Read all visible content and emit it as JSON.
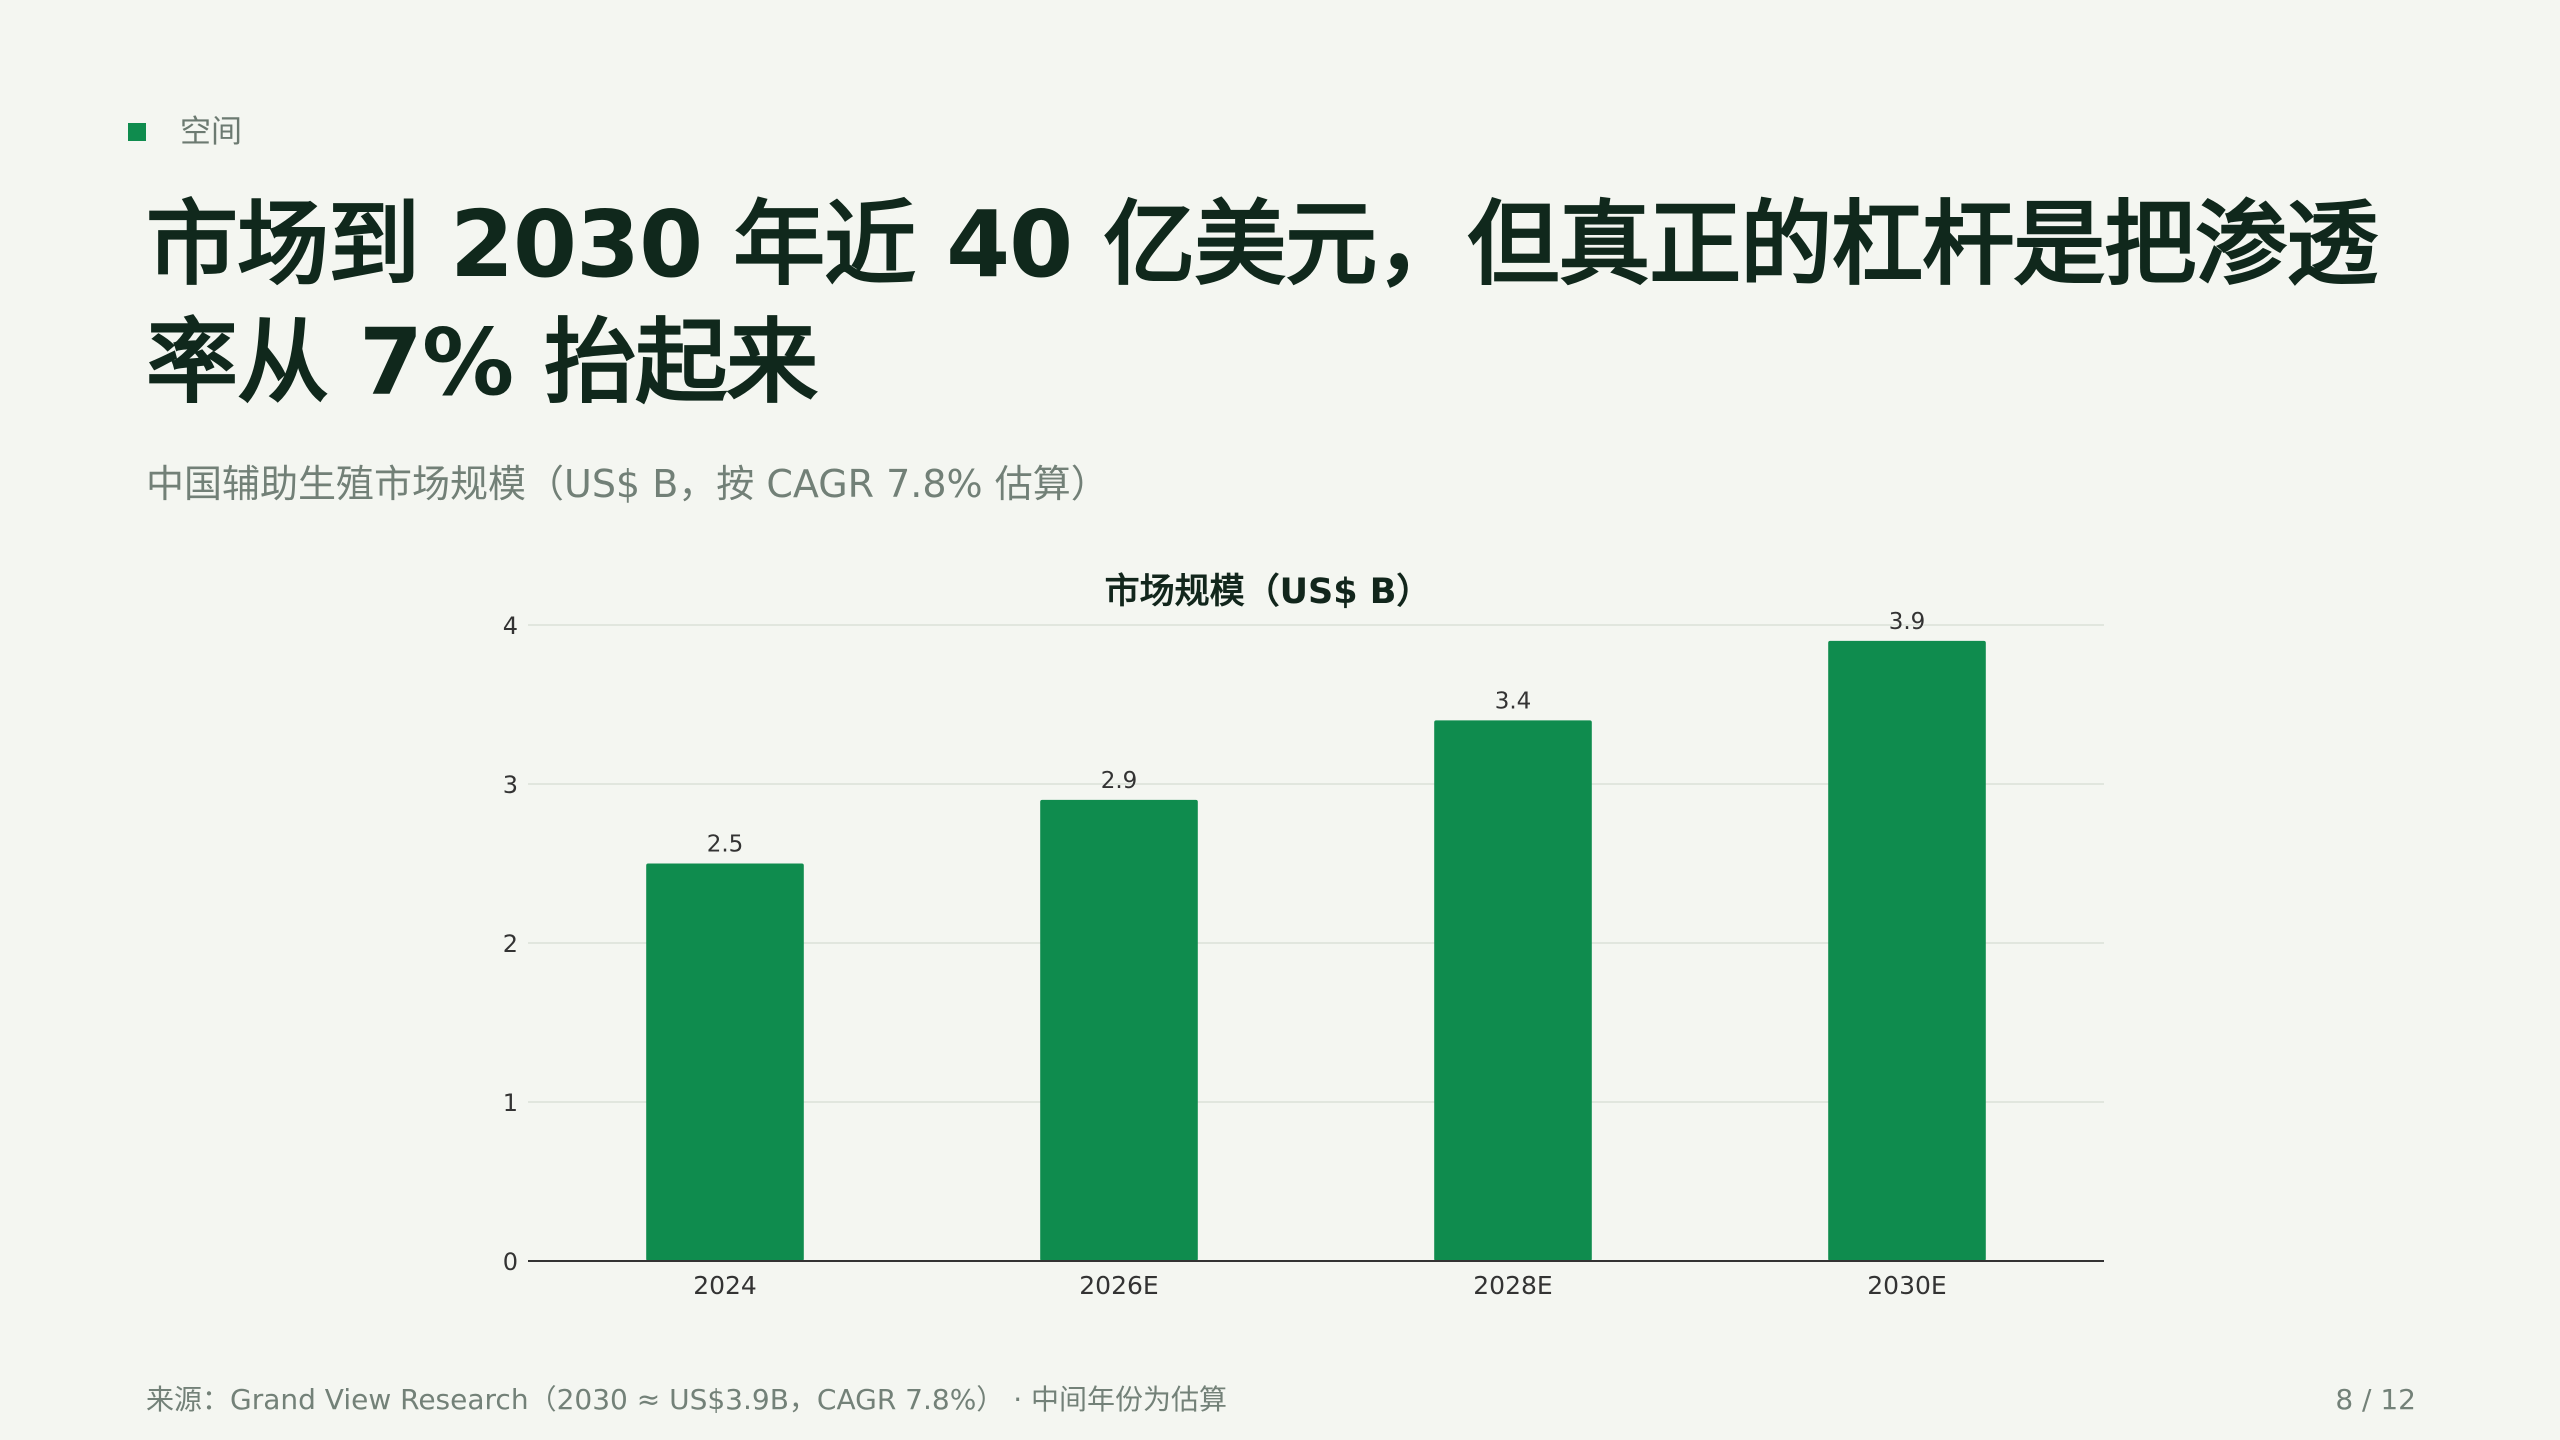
{
  "section": {
    "label": "空间"
  },
  "header": {
    "title": "市场到 2030 年近 40 亿美元，但真正的杠杆是把渗透率从 7% 抬起来",
    "subtitle": "中国辅助生殖市场规模（US$ B，按 CAGR 7.8% 估算）"
  },
  "colors": {
    "accent": "#0f8c4e",
    "background": "#f4f6f1",
    "title": "#10281c",
    "muted": "#728077",
    "gridline": "#e1e6de",
    "axis": "#333333"
  },
  "chart_data": {
    "type": "bar",
    "title": "市场规模（US$ B）",
    "categories": [
      "2024",
      "2026E",
      "2028E",
      "2030E"
    ],
    "values": [
      2.5,
      2.9,
      3.4,
      3.9
    ],
    "data_labels": [
      "2.5",
      "2.9",
      "3.4",
      "3.9"
    ],
    "ylim": [
      0,
      4
    ],
    "y_ticks": [
      0,
      1,
      2,
      3,
      4
    ],
    "grid": true,
    "legend": "none",
    "bar_color": "#0f8c4e"
  },
  "footer": {
    "source": "来源：Grand View Research（2030 ≈ US$3.9B，CAGR 7.8%） · 中间年份为估算",
    "page": "8 / 12"
  }
}
